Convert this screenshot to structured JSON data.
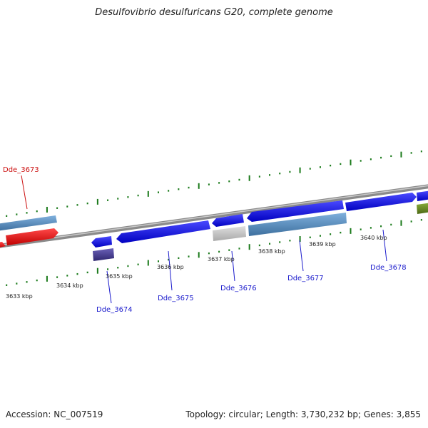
{
  "title": "Desulfovibrio desulfuricans G20, complete genome",
  "footer": {
    "accession": "Accession: NC_007519",
    "summary": "Topology: circular; Length: 3,730,232 bp; Genes: 3,855"
  },
  "colors": {
    "backbone": "#8a8a8a",
    "tick": "#1a7a1a",
    "gene_blue": "#1a1aee",
    "gene_red": "#ee1111",
    "gene_steel": "#5a8fc0",
    "gene_grey": "#c4c4c4",
    "gene_purple": "#4a3f90",
    "gene_olive": "#6b8a25",
    "label_blue": "#1a1acc",
    "label_red": "#cc1111"
  },
  "scale_labels": [
    "3633 kbp",
    "3634 kbp",
    "3635 kbp",
    "3636 kbp",
    "3637 kbp",
    "3638 kbp",
    "3639 kbp",
    "3640 kbp"
  ],
  "gene_labels": [
    {
      "text": "Dde_3673",
      "color": "red"
    },
    {
      "text": "Dde_3674",
      "color": "blue"
    },
    {
      "text": "Dde_3675",
      "color": "blue"
    },
    {
      "text": "Dde_3676",
      "color": "blue"
    },
    {
      "text": "Dde_3677",
      "color": "blue"
    },
    {
      "text": "Dde_3678",
      "color": "blue"
    }
  ]
}
